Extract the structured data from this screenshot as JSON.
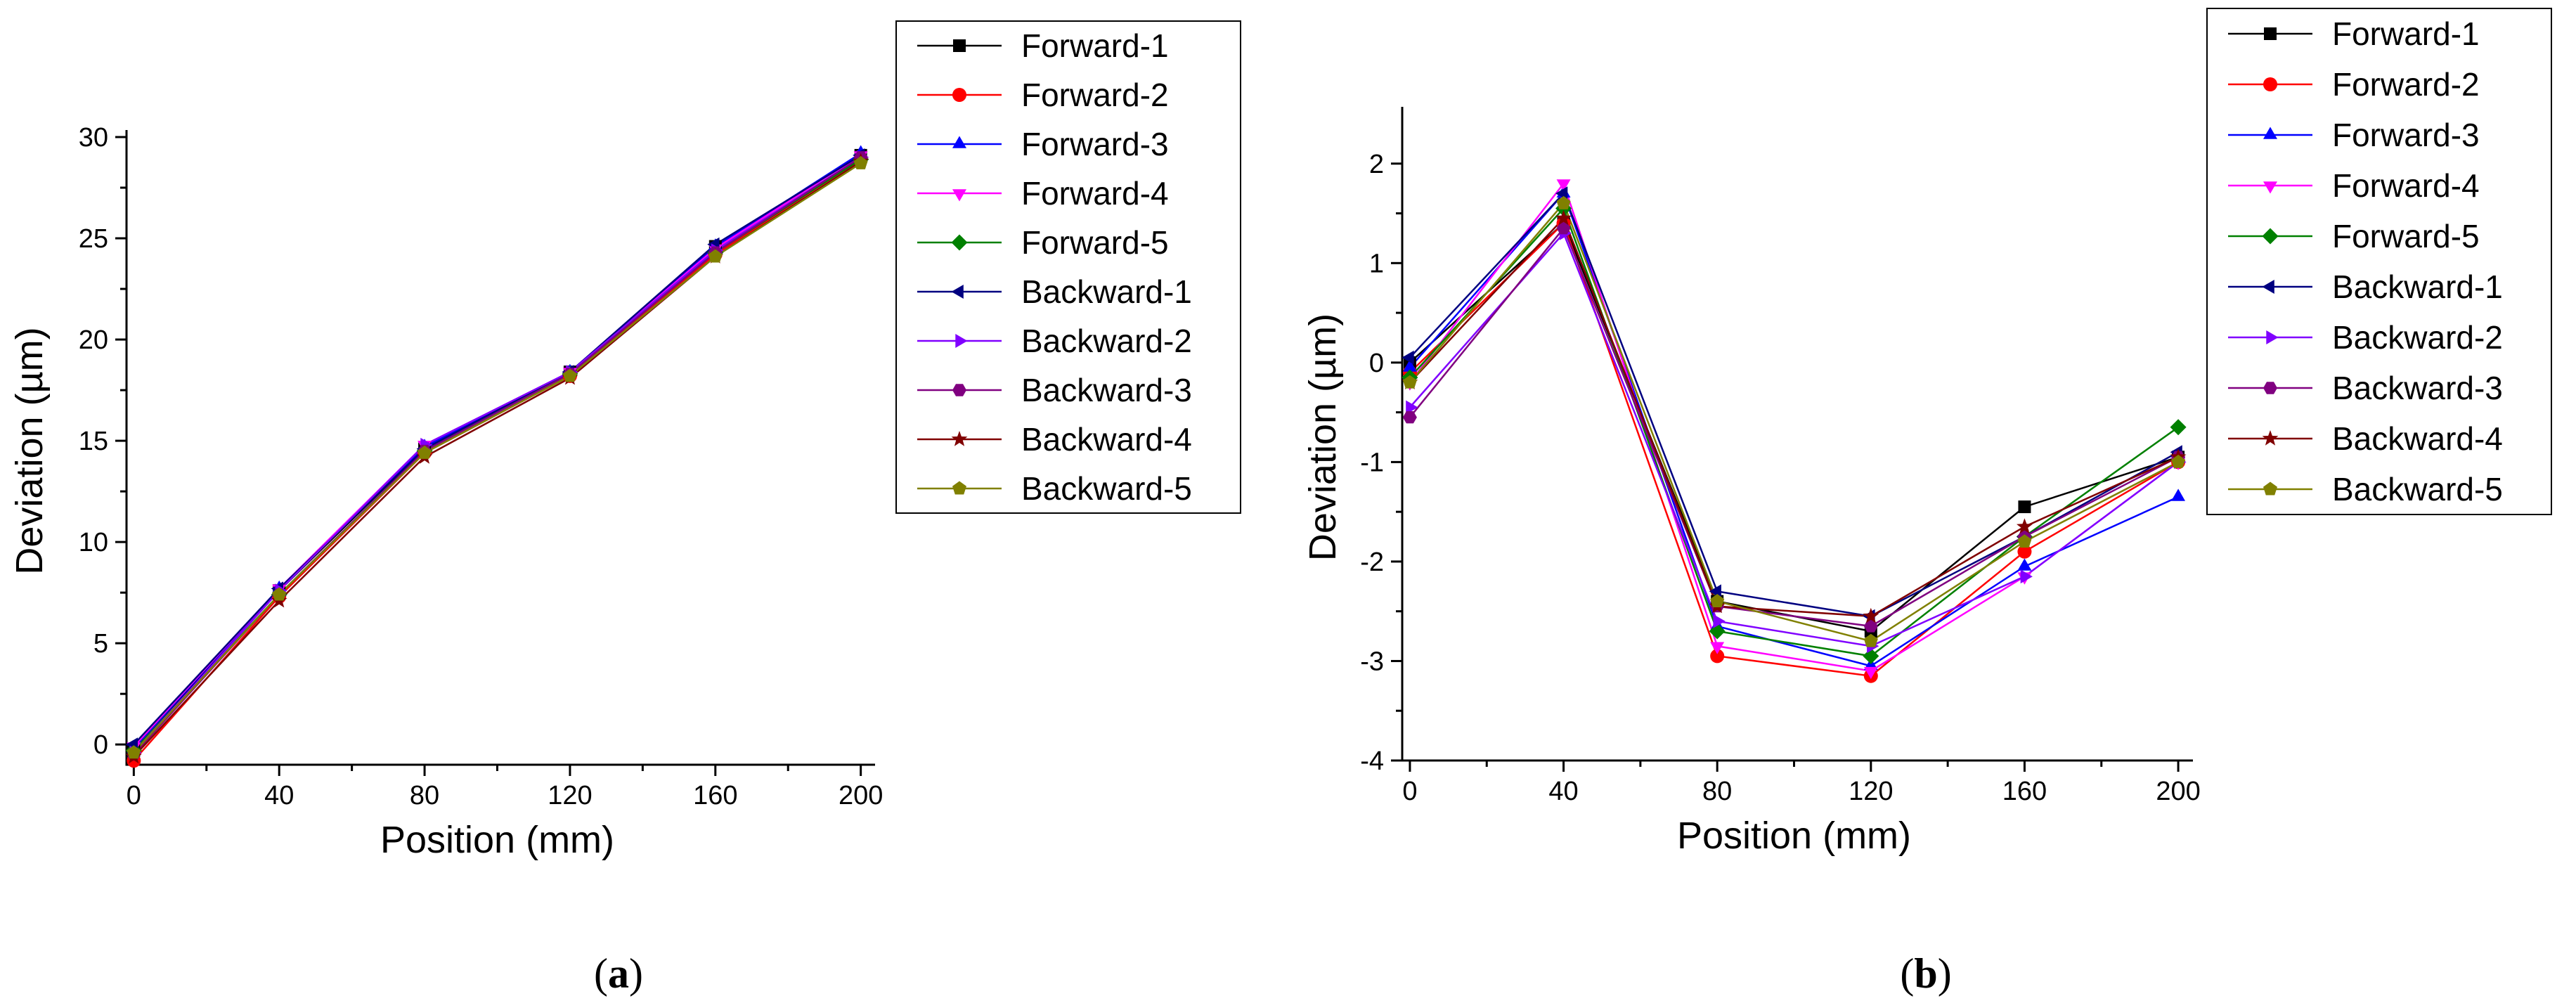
{
  "chart_data": [
    {
      "type": "line",
      "panel_label": "a",
      "title": "",
      "xlabel": "Position (mm)",
      "ylabel": "Deviation (µm)",
      "x": [
        0,
        40,
        80,
        120,
        160,
        200
      ],
      "xticks": [
        "0",
        "40",
        "80",
        "120",
        "160",
        "200"
      ],
      "xlim": [
        -2,
        202
      ],
      "ylim": [
        -1,
        30
      ],
      "yticks": [
        0,
        5,
        10,
        15,
        20,
        25,
        30
      ],
      "legend_position": "top-right",
      "series": [
        {
          "name": "Forward-1",
          "color": "#000000",
          "marker": "square",
          "values": [
            -0.3,
            7.6,
            14.6,
            18.4,
            24.6,
            29.1
          ]
        },
        {
          "name": "Forward-2",
          "color": "#ff0000",
          "marker": "circle",
          "values": [
            -0.8,
            7.3,
            14.4,
            18.2,
            24.2,
            28.9
          ]
        },
        {
          "name": "Forward-3",
          "color": "#0000ff",
          "marker": "triangle-up",
          "values": [
            -0.2,
            7.7,
            14.7,
            18.4,
            24.6,
            29.2
          ]
        },
        {
          "name": "Forward-4",
          "color": "#ff00ff",
          "marker": "triangle-down",
          "values": [
            -0.1,
            7.7,
            14.8,
            18.4,
            24.5,
            29.1
          ]
        },
        {
          "name": "Forward-5",
          "color": "#008000",
          "marker": "diamond",
          "values": [
            -0.3,
            7.4,
            14.5,
            18.3,
            24.3,
            28.9
          ]
        },
        {
          "name": "Backward-1",
          "color": "#000080",
          "marker": "triangle-left",
          "values": [
            0.0,
            7.7,
            14.6,
            18.4,
            24.7,
            29.1
          ]
        },
        {
          "name": "Backward-2",
          "color": "#8000ff",
          "marker": "triangle-right",
          "values": [
            -0.4,
            7.6,
            14.8,
            18.4,
            24.4,
            29.0
          ]
        },
        {
          "name": "Backward-3",
          "color": "#800080",
          "marker": "hexagon",
          "values": [
            -0.5,
            7.4,
            14.5,
            18.3,
            24.3,
            29.0
          ]
        },
        {
          "name": "Backward-4",
          "color": "#800000",
          "marker": "star",
          "values": [
            -0.6,
            7.1,
            14.2,
            18.1,
            24.1,
            28.8
          ]
        },
        {
          "name": "Backward-5",
          "color": "#808000",
          "marker": "pentagon",
          "values": [
            -0.4,
            7.4,
            14.4,
            18.2,
            24.1,
            28.7
          ]
        }
      ]
    },
    {
      "type": "line",
      "panel_label": "b",
      "title": "",
      "xlabel": "Position (mm)",
      "ylabel": "Deviation (µm)",
      "x": [
        0,
        40,
        80,
        120,
        160,
        200
      ],
      "xticks": [
        "0",
        "40",
        "80",
        "120",
        "160",
        "200"
      ],
      "xlim": [
        -2,
        202
      ],
      "ylim": [
        -4,
        2.5
      ],
      "yticks": [
        -4,
        -3,
        -2,
        -1,
        0,
        1,
        2
      ],
      "legend_position": "top-right",
      "series": [
        {
          "name": "Forward-1",
          "color": "#000000",
          "marker": "square",
          "values": [
            0.0,
            1.4,
            -2.4,
            -2.7,
            -1.45,
            -0.95
          ]
        },
        {
          "name": "Forward-2",
          "color": "#ff0000",
          "marker": "circle",
          "values": [
            -0.1,
            1.4,
            -2.95,
            -3.15,
            -1.9,
            -1.0
          ]
        },
        {
          "name": "Forward-3",
          "color": "#0000ff",
          "marker": "triangle-up",
          "values": [
            -0.05,
            1.7,
            -2.65,
            -3.05,
            -2.05,
            -1.35
          ]
        },
        {
          "name": "Forward-4",
          "color": "#ff00ff",
          "marker": "triangle-down",
          "values": [
            -0.2,
            1.8,
            -2.85,
            -3.1,
            -2.15,
            -1.0
          ]
        },
        {
          "name": "Forward-5",
          "color": "#008000",
          "marker": "diamond",
          "values": [
            -0.15,
            1.55,
            -2.7,
            -2.95,
            -1.75,
            -0.65
          ]
        },
        {
          "name": "Backward-1",
          "color": "#000080",
          "marker": "triangle-left",
          "values": [
            0.05,
            1.7,
            -2.3,
            -2.55,
            -1.75,
            -0.9
          ]
        },
        {
          "name": "Backward-2",
          "color": "#8000ff",
          "marker": "triangle-right",
          "values": [
            -0.45,
            1.3,
            -2.6,
            -2.85,
            -2.15,
            -1.0
          ]
        },
        {
          "name": "Backward-3",
          "color": "#800080",
          "marker": "hexagon",
          "values": [
            -0.55,
            1.35,
            -2.45,
            -2.65,
            -1.75,
            -0.95
          ]
        },
        {
          "name": "Backward-4",
          "color": "#800000",
          "marker": "star",
          "values": [
            -0.2,
            1.45,
            -2.45,
            -2.55,
            -1.65,
            -0.95
          ]
        },
        {
          "name": "Backward-5",
          "color": "#808000",
          "marker": "pentagon",
          "values": [
            -0.2,
            1.6,
            -2.4,
            -2.8,
            -1.8,
            -1.0
          ]
        }
      ]
    }
  ]
}
